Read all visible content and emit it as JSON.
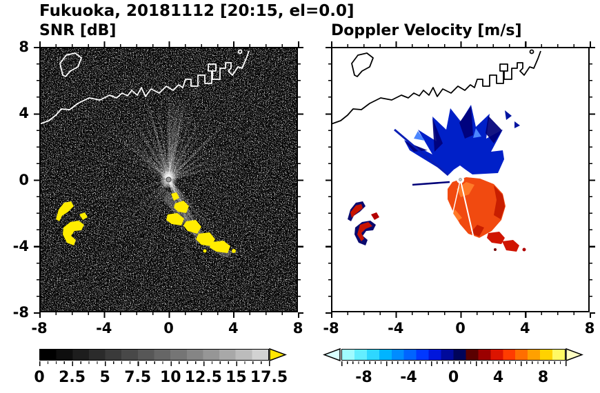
{
  "figure": {
    "title": "Fukuoka, 20181112 [20:15, el=0.0]"
  },
  "chart_data": [
    {
      "type": "heatmap",
      "panel": "left",
      "title": "SNR [dB]",
      "xlim": [
        -8,
        8
      ],
      "ylim": [
        -8,
        8
      ],
      "x_ticks": [
        -8,
        -4,
        0,
        4,
        8
      ],
      "y_ticks": [
        8,
        4,
        0,
        -4,
        -8
      ],
      "minor_tick_step": 1,
      "grid": false,
      "legend": "none",
      "colorbar": {
        "orientation": "horizontal",
        "range": [
          0,
          17.5
        ],
        "tick_values": [
          0,
          2.5,
          5,
          7.5,
          10,
          12.5,
          15,
          17.5
        ],
        "colors": [
          "#000000",
          "#0e0e0e",
          "#1d1d1d",
          "#2b2b2b",
          "#3a3a3a",
          "#484848",
          "#575757",
          "#666666",
          "#757575",
          "#858585",
          "#969696",
          "#a8a8a8",
          "#bcbcbc",
          "#d2d2d2"
        ],
        "over_arrow_color": "#ffe600"
      },
      "content_notes": "Radar PPI scan centered at (0,0): speckled dark noise field, bright radial beams fanning N/NE and SE from the radar, white coastline across the top, yellow high-SNR echo patches SW of center and in a chain running SE of center"
    },
    {
      "type": "heatmap",
      "panel": "right",
      "title": "Doppler Velocity [m/s]",
      "xlim": [
        -8,
        8
      ],
      "ylim": [
        -8,
        8
      ],
      "x_ticks": [
        -8,
        -4,
        0,
        4,
        8
      ],
      "y_ticks": [
        8,
        4,
        0,
        -4,
        -8
      ],
      "minor_tick_step": 1,
      "grid": false,
      "legend": "none",
      "colorbar": {
        "orientation": "horizontal",
        "range": [
          -10,
          10
        ],
        "tick_values": [
          -8,
          -4,
          0,
          4,
          8
        ],
        "colors": [
          "#a0fbff",
          "#64eeff",
          "#2ed7ff",
          "#00b4ff",
          "#008cff",
          "#0064ff",
          "#0038ff",
          "#0016dc",
          "#000a9b",
          "#00045a",
          "#5a0000",
          "#9b0000",
          "#dc1400",
          "#ff3c00",
          "#ff6e00",
          "#ffa000",
          "#ffd200",
          "#fff964"
        ],
        "under_arrow_color": "#d9ffff",
        "over_arrow_color": "#ffffc4"
      },
      "content_notes": "Doppler velocity field on white: spiky dark-blue negative-velocity fan north of the radar, orange-red positive-velocity lobe south-east of the radar, small red/navy echoes to the west, black coastline across the top"
    }
  ]
}
